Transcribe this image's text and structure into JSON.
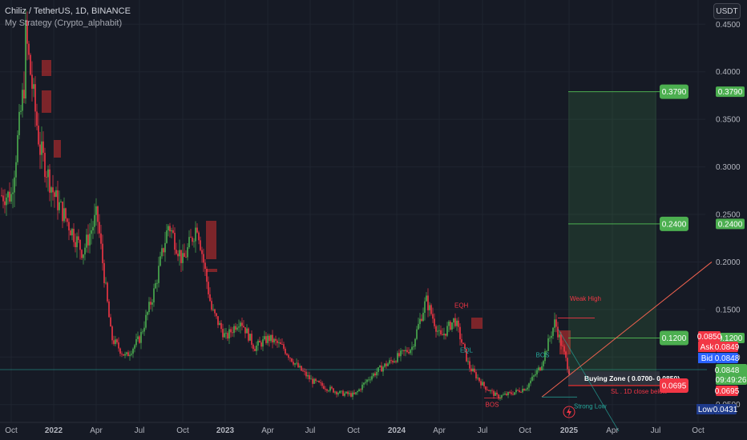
{
  "header": {
    "symbol_line": "Chiliz / TetherUS, 1D, BINANCE",
    "indicator_line": "My Strategy (Crypto_alphabit)",
    "currency_button": "USDT"
  },
  "colors": {
    "background": "#161a25",
    "up": "#26a69a",
    "down": "#ef5350",
    "candle_up": "#4caf50",
    "candle_down": "#f23645",
    "target_green": "#4caf50",
    "zone_red": "#d32f2f",
    "grid": "#1f2430"
  },
  "chart_data": {
    "type": "candlestick",
    "price_axis": {
      "ticks": [
        "0.4500",
        "0.4000",
        "0.3500",
        "0.3000",
        "0.2500",
        "0.2000",
        "0.1500",
        "0.1000",
        "0.0500"
      ],
      "tick_values": [
        0.45,
        0.4,
        0.35,
        0.3,
        0.25,
        0.2,
        0.15,
        0.1,
        0.05
      ]
    },
    "time_axis": {
      "ticks": [
        "Oct",
        "2022",
        "Apr",
        "Jul",
        "Oct",
        "2023",
        "Apr",
        "Jul",
        "Oct",
        "2024",
        "Apr",
        "Jul",
        "Oct",
        "2025",
        "Apr",
        "Jul",
        "Oct"
      ],
      "bold": [
        "2022",
        "2023",
        "2024",
        "2025"
      ]
    },
    "price_path": [
      [
        "2021-10",
        0.27
      ],
      [
        "2021-11",
        0.4
      ],
      [
        "2021-11",
        0.44
      ],
      [
        "2021-12",
        0.32
      ],
      [
        "2022-01",
        0.27
      ],
      [
        "2022-02",
        0.24
      ],
      [
        "2022-03",
        0.21
      ],
      [
        "2022-04",
        0.25
      ],
      [
        "2022-05",
        0.12
      ],
      [
        "2022-06",
        0.1
      ],
      [
        "2022-07",
        0.12
      ],
      [
        "2022-08",
        0.17
      ],
      [
        "2022-09",
        0.24
      ],
      [
        "2022-10",
        0.2
      ],
      [
        "2022-11",
        0.24
      ],
      [
        "2022-12",
        0.15
      ],
      [
        "2023-01",
        0.12
      ],
      [
        "2023-02",
        0.14
      ],
      [
        "2023-03",
        0.11
      ],
      [
        "2023-04",
        0.12
      ],
      [
        "2023-05",
        0.11
      ],
      [
        "2023-06",
        0.09
      ],
      [
        "2023-07",
        0.075
      ],
      [
        "2023-08",
        0.068
      ],
      [
        "2023-09",
        0.062
      ],
      [
        "2023-10",
        0.06
      ],
      [
        "2023-11",
        0.078
      ],
      [
        "2023-12",
        0.09
      ],
      [
        "2024-01",
        0.1
      ],
      [
        "2024-02",
        0.11
      ],
      [
        "2024-03",
        0.16
      ],
      [
        "2024-04",
        0.12
      ],
      [
        "2024-05",
        0.14
      ],
      [
        "2024-06",
        0.09
      ],
      [
        "2024-07",
        0.07
      ],
      [
        "2024-08",
        0.058
      ],
      [
        "2024-09",
        0.062
      ],
      [
        "2024-10",
        0.068
      ],
      [
        "2024-11",
        0.09
      ],
      [
        "2024-12",
        0.137
      ],
      [
        "2025-01",
        0.085
      ]
    ],
    "trade_setup": {
      "targets": [
        "0.3790",
        "0.2400",
        "0.1200"
      ],
      "buying_zone_label": "Buying Zone ( 0.0700- 0.0850)",
      "stop_loss_value": "0.0695",
      "stop_loss_label": "SL . 1D close below"
    },
    "price_tags": {
      "ask_label": "Ask",
      "ask_value": "0.0849",
      "bid_label": "Bid",
      "bid_value": "0.0848",
      "top_red": "0.0850",
      "last_value": "0.0848",
      "countdown": "09:49:26",
      "stop_tag": "0.0695",
      "low_label": "Low",
      "low_value": "0.0431"
    },
    "annotations": {
      "bos_left": "BOS",
      "bos_right": "BOS",
      "eqh": "EQH",
      "eql": "EQL",
      "weak_high": "Weak High",
      "strong_low": "Strong Low"
    }
  }
}
